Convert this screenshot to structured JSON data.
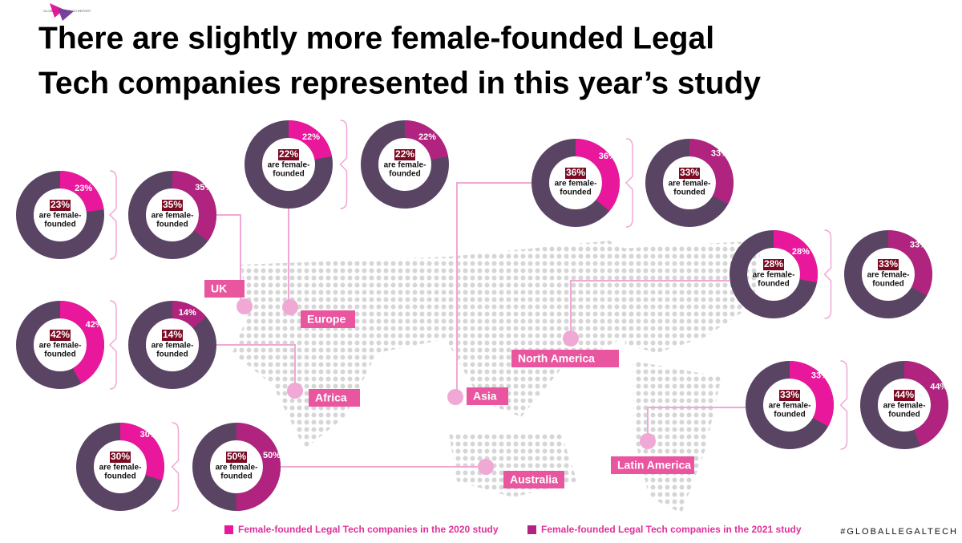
{
  "logo": "GLOBAL LEGAL TECH REPORT",
  "title": [
    "There are slightly more female-founded Legal",
    "Tech companies represented in this year’s study"
  ],
  "legend": [
    "Female-founded Legal Tech companies in the 2020 study",
    "Female-founded Legal Tech companies in the 2021 study"
  ],
  "hashtag": "#GLOBALLEGALTECH",
  "regions": [
    "UK",
    "Europe",
    "Asia",
    "Africa",
    "Australia",
    "North America",
    "Latin America"
  ],
  "chart_data": [
    {
      "type": "donut",
      "values": [
        23
      ],
      "value_labels": [
        "23%"
      ],
      "caption": [
        "are female-",
        "founded"
      ],
      "color": "#e8179b"
    },
    {
      "type": "donut",
      "values": [
        35
      ],
      "value_labels": [
        "35%"
      ],
      "caption": [
        "are female-",
        "founded"
      ],
      "color": "#b0247f"
    },
    {
      "type": "donut",
      "values": [
        22
      ],
      "value_labels": [
        "22%"
      ],
      "caption": [
        "are female-",
        "founded"
      ],
      "color": "#e8179b"
    },
    {
      "type": "donut",
      "values": [
        22
      ],
      "value_labels": [
        "22%"
      ],
      "caption": [
        "are female-",
        "founded"
      ],
      "color": "#b0247f"
    },
    {
      "type": "donut",
      "values": [
        36
      ],
      "value_labels": [
        "36%"
      ],
      "caption": [
        "are female-",
        "founded"
      ],
      "color": "#e8179b"
    },
    {
      "type": "donut",
      "values": [
        33
      ],
      "value_labels": [
        "33%"
      ],
      "caption": [
        "are female-",
        "founded"
      ],
      "color": "#b0247f"
    },
    {
      "type": "donut",
      "values": [
        42
      ],
      "value_labels": [
        "42%"
      ],
      "caption": [
        "are female-",
        "founded"
      ],
      "color": "#e8179b"
    },
    {
      "type": "donut",
      "values": [
        14
      ],
      "value_labels": [
        "14%"
      ],
      "caption": [
        "are female-",
        "founded"
      ],
      "color": "#b0247f"
    },
    {
      "type": "donut",
      "values": [
        30
      ],
      "value_labels": [
        "30%"
      ],
      "caption": [
        "are female-",
        "founded"
      ],
      "color": "#e8179b"
    },
    {
      "type": "donut",
      "values": [
        50
      ],
      "value_labels": [
        "50%"
      ],
      "caption": [
        "are female-",
        "founded"
      ],
      "color": "#b0247f"
    },
    {
      "type": "donut",
      "values": [
        28
      ],
      "value_labels": [
        "28%"
      ],
      "caption": [
        "are female-",
        "founded"
      ],
      "color": "#e8179b"
    },
    {
      "type": "donut",
      "values": [
        33
      ],
      "value_labels": [
        "33%"
      ],
      "caption": [
        "are female-",
        "founded"
      ],
      "color": "#b0247f"
    },
    {
      "type": "donut",
      "values": [
        33
      ],
      "value_labels": [
        "33%"
      ],
      "caption": [
        "are female-",
        "founded"
      ],
      "color": "#e8179b"
    },
    {
      "type": "donut",
      "values": [
        44
      ],
      "value_labels": [
        "44%"
      ],
      "caption": [
        "are female-",
        "founded"
      ],
      "color": "#b0247f"
    }
  ]
}
